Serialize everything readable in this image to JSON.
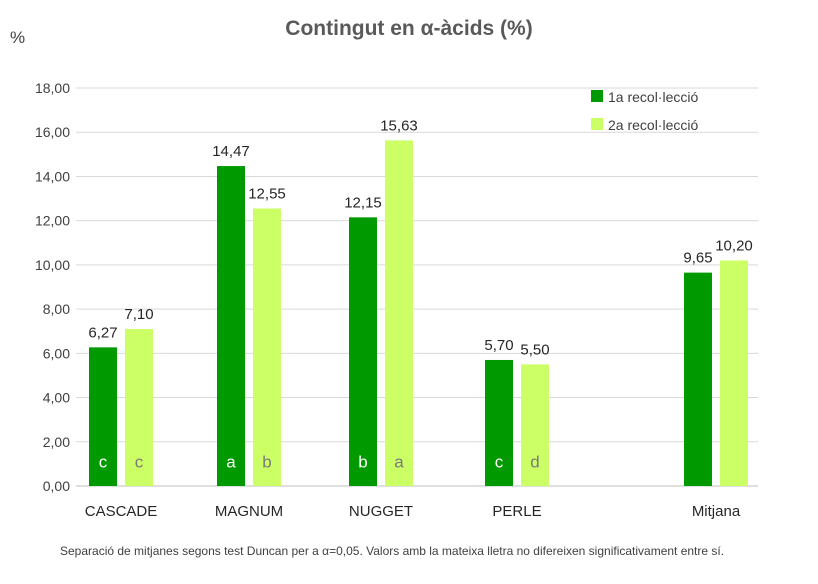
{
  "chart_data": {
    "type": "bar",
    "title": "Contingut en α-àcids (%)",
    "ylabel": "%",
    "xlabel": "",
    "ylim": [
      0,
      18
    ],
    "yticks": [
      "0,00",
      "2,00",
      "4,00",
      "6,00",
      "8,00",
      "10,00",
      "12,00",
      "14,00",
      "16,00",
      "18,00"
    ],
    "categories": [
      "CASCADE",
      "MAGNUM",
      "NUGGET",
      "PERLE",
      "Mitjana"
    ],
    "series": [
      {
        "name": "1a recol·lecció",
        "color": "#009900",
        "values": [
          6.27,
          14.47,
          12.15,
          5.7,
          9.65
        ],
        "value_labels": [
          "6,27",
          "14,47",
          "12,15",
          "5,70",
          "9,65"
        ],
        "letters": [
          "c",
          "a",
          "b",
          "c",
          ""
        ]
      },
      {
        "name": "2a recol·lecció",
        "color": "#ccff66",
        "values": [
          7.1,
          12.55,
          15.63,
          5.5,
          10.2
        ],
        "value_labels": [
          "7,10",
          "12,55",
          "15,63",
          "5,50",
          "10,20"
        ],
        "letters": [
          "c",
          "b",
          "a",
          "d",
          ""
        ]
      }
    ],
    "grid": true,
    "legend_position": "top-right"
  },
  "footnote": "Separació de mitjanes segons test Duncan per a α=0,05. Valors amb la mateixa lletra no difereixen significativament entre sí."
}
